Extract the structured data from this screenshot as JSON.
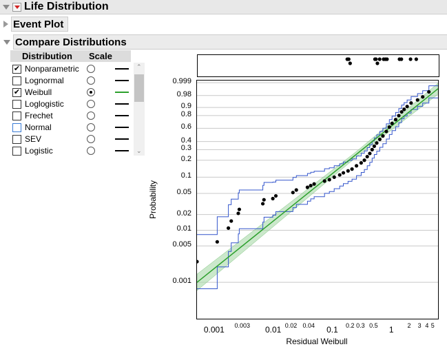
{
  "report": {
    "title": "Life Distribution"
  },
  "event_plot": {
    "title": "Event Plot"
  },
  "compare": {
    "title": "Compare Distributions"
  },
  "table": {
    "col_distribution": "Distribution",
    "col_scale": "Scale",
    "rows": [
      {
        "label": "Nonparametric",
        "checked": true,
        "selected": false,
        "swatch": "#000000"
      },
      {
        "label": "Lognormal",
        "checked": false,
        "selected": false,
        "swatch": "#000000"
      },
      {
        "label": "Weibull",
        "checked": true,
        "selected": true,
        "swatch": "#2ca02c"
      },
      {
        "label": "Loglogistic",
        "checked": false,
        "selected": false,
        "swatch": "#000000"
      },
      {
        "label": "Frechet",
        "checked": false,
        "selected": false,
        "swatch": "#000000"
      },
      {
        "label": "Normal",
        "checked": false,
        "selected": false,
        "swatch": "#000000"
      },
      {
        "label": "SEV",
        "checked": false,
        "selected": false,
        "swatch": "#000000"
      },
      {
        "label": "Logistic",
        "checked": false,
        "selected": false,
        "swatch": "#000000"
      }
    ]
  },
  "chart_data": {
    "type": "scatter",
    "x_scale": "log",
    "y_scale": "weibull-probability",
    "xlabel": "Residual Weibull",
    "ylabel": "Probability",
    "xlim": [
      0.0005,
      6
    ],
    "ylim": [
      0.0002,
      0.9995
    ],
    "x_ticks": [
      "0.001",
      "0.003",
      "0.01",
      "0.02",
      "0.04",
      "0.1",
      "0.2",
      "0.3",
      "0.5",
      "1",
      "2",
      "3",
      "4",
      "5"
    ],
    "y_ticks": [
      "0.999",
      "0.98",
      "0.9",
      "0.8",
      "0.6",
      "0.4",
      "0.3",
      "0.2",
      "0.1",
      "0.05",
      "0.02",
      "0.01",
      "0.005",
      "0.001"
    ],
    "colors": {
      "points": "#000000",
      "fit_line": "#2ca02c",
      "fit_band": "#a9d9a9",
      "nonparam_bounds": "#3355cc",
      "grid": "#c8c8c8"
    },
    "weibull_fit": {
      "x": [
        0.0005,
        6
      ],
      "y": [
        0.001,
        0.995
      ]
    },
    "points": [
      [
        0.0005,
        0.0025
      ],
      [
        0.0011,
        0.006
      ],
      [
        0.0017,
        0.011
      ],
      [
        0.0019,
        0.015
      ],
      [
        0.0025,
        0.021
      ],
      [
        0.0026,
        0.025
      ],
      [
        0.0065,
        0.032
      ],
      [
        0.0068,
        0.038
      ],
      [
        0.0096,
        0.04
      ],
      [
        0.0108,
        0.045
      ],
      [
        0.021,
        0.052
      ],
      [
        0.024,
        0.058
      ],
      [
        0.037,
        0.065
      ],
      [
        0.042,
        0.07
      ],
      [
        0.048,
        0.075
      ],
      [
        0.072,
        0.085
      ],
      [
        0.087,
        0.09
      ],
      [
        0.105,
        0.1
      ],
      [
        0.13,
        0.11
      ],
      [
        0.15,
        0.12
      ],
      [
        0.18,
        0.13
      ],
      [
        0.21,
        0.14
      ],
      [
        0.25,
        0.16
      ],
      [
        0.3,
        0.18
      ],
      [
        0.34,
        0.2
      ],
      [
        0.38,
        0.23
      ],
      [
        0.42,
        0.26
      ],
      [
        0.46,
        0.3
      ],
      [
        0.5,
        0.34
      ],
      [
        0.55,
        0.38
      ],
      [
        0.62,
        0.43
      ],
      [
        0.7,
        0.48
      ],
      [
        0.8,
        0.55
      ],
      [
        0.9,
        0.62
      ],
      [
        1.0,
        0.68
      ],
      [
        1.15,
        0.74
      ],
      [
        1.3,
        0.8
      ],
      [
        1.45,
        0.85
      ],
      [
        1.6,
        0.88
      ],
      [
        1.8,
        0.91
      ],
      [
        2.1,
        0.94
      ],
      [
        2.7,
        0.96
      ],
      [
        3.3,
        0.975
      ],
      [
        4.2,
        0.99
      ]
    ],
    "dot_strip": [
      0.17,
      0.18,
      0.19,
      0.5,
      0.52,
      0.55,
      0.6,
      0.7,
      0.75,
      0.8,
      1.3,
      1.4,
      2.0,
      2.5
    ]
  }
}
